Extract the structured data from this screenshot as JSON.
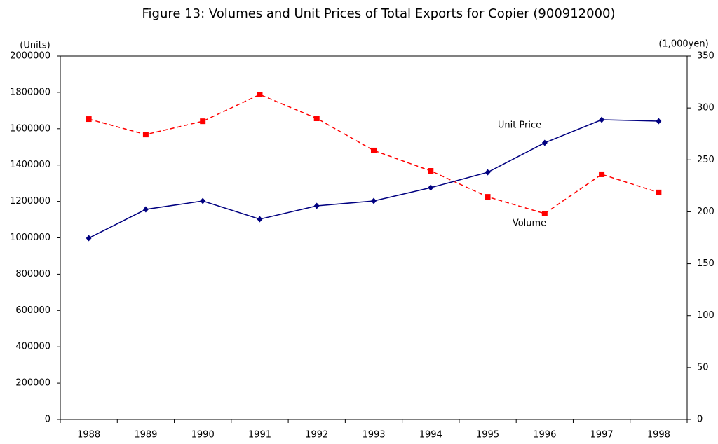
{
  "chart_data": {
    "type": "line",
    "title": "Figure 13: Volumes and Unit Prices of Total Exports for Copier (900912000)",
    "y_label": "(Units)",
    "y2_label": "(1,000yen)",
    "annotations": [
      "Unit Price",
      "Volume"
    ],
    "categories": [
      "1988",
      "1989",
      "1990",
      "1991",
      "1992",
      "1993",
      "1994",
      "1995",
      "1996",
      "1997",
      "1998"
    ],
    "series": [
      {
        "name": "Volume",
        "color": "#ff0000",
        "dashed": true,
        "marker": "square",
        "values": [
          1653000,
          1568000,
          1641000,
          1788000,
          1657000,
          1480000,
          1368000,
          1225000,
          1133000,
          1349000,
          1249000
        ]
      },
      {
        "name": "Unit Price",
        "color": "#000080",
        "dashed": false,
        "marker": "diamond",
        "axis": "y2",
        "values": [
          174.7,
          202.3,
          210.4,
          192.9,
          205.7,
          210.4,
          223.2,
          238.0,
          266.4,
          288.6,
          287.3
        ]
      }
    ],
    "ylim": [
      0,
      2000000
    ],
    "yticks": [
      0,
      200000,
      400000,
      600000,
      800000,
      1000000,
      1200000,
      1400000,
      1600000,
      1800000,
      2000000
    ],
    "y2lim": [
      0,
      350
    ],
    "y2ticks": [
      0,
      50,
      100,
      150,
      200,
      250,
      300,
      350
    ],
    "grid": false
  }
}
